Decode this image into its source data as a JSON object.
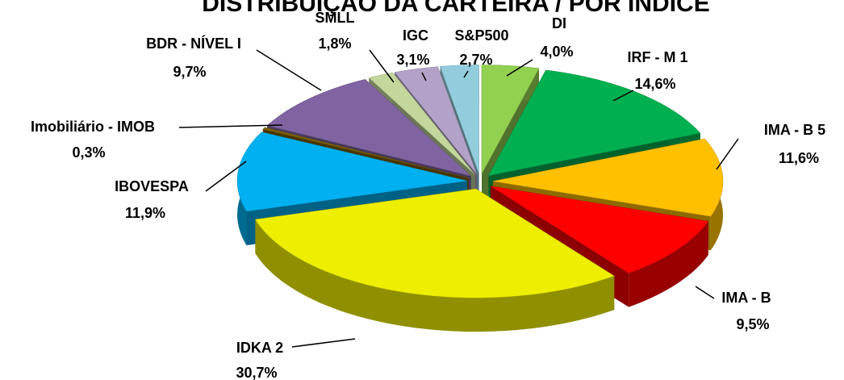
{
  "chart_data": {
    "type": "pie3d",
    "title": "DISTRIBUIÇÃO DA CARTEIRA / POR ÍNDICE",
    "categories": [
      "DI",
      "IRF - M 1",
      "IMA - B 5",
      "IMA - B",
      "IDKA 2",
      "IBOVESPA",
      "Imobiliário - IMOB",
      "BDR - NÍVEL I",
      "SMLL",
      "IGC",
      "S&P500"
    ],
    "values": [
      4.0,
      14.6,
      11.6,
      9.5,
      30.7,
      11.9,
      0.3,
      9.7,
      1.8,
      3.1,
      2.7
    ],
    "value_labels": [
      "4,0%",
      "14,6%",
      "11,6%",
      "9,5%",
      "30,7%",
      "11,9%",
      "0,3%",
      "9,7%",
      "1,8%",
      "3,1%",
      "2,7%"
    ],
    "colors": [
      "#92d050",
      "#00b050",
      "#ffc000",
      "#ff0000",
      "#eeee00",
      "#00b0f0",
      "#7f6000",
      "#8064a2",
      "#c3d69b",
      "#b3a2c7",
      "#93cddd"
    ]
  }
}
